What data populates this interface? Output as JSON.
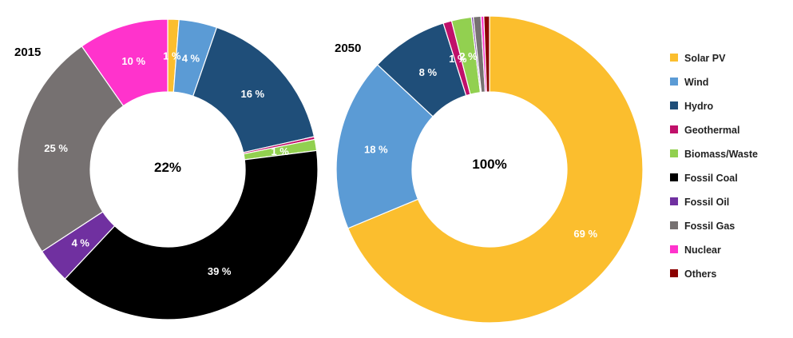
{
  "chart_data": [
    {
      "type": "pie",
      "title": "2015",
      "center_label": "22%",
      "labels": [
        "Solar PV",
        "Wind",
        "Hydro",
        "Geothermal",
        "Biomass/Waste",
        "Fossil Coal",
        "Fossil Oil",
        "Fossil Gas",
        "Nuclear",
        "Others"
      ],
      "values": [
        1.2,
        4.1,
        16.2,
        0.3,
        1.2,
        39.0,
        3.8,
        24.5,
        9.7,
        0
      ],
      "data_labels": [
        "1 %",
        "4 %",
        "16 %",
        "",
        "1 %",
        "39 %",
        "4 %",
        "25 %",
        "10 %",
        ""
      ]
    },
    {
      "type": "pie",
      "title": "2050",
      "center_label": "100%",
      "labels": [
        "Solar PV",
        "Wind",
        "Hydro",
        "Geothermal",
        "Biomass/Waste",
        "Fossil Coal",
        "Fossil Oil",
        "Fossil Gas",
        "Nuclear",
        "Others"
      ],
      "values": [
        69.0,
        18.3,
        8.2,
        0.9,
        2.1,
        0,
        0.2,
        0.8,
        0.3,
        0.6
      ],
      "data_labels": [
        "69 %",
        "18 %",
        "8 %",
        "1 %",
        "2 %",
        "",
        "",
        "",
        "",
        ""
      ]
    }
  ],
  "legend": {
    "placement": "right",
    "items": [
      {
        "label": "Solar PV",
        "color": "#FBBE2E"
      },
      {
        "label": "Wind",
        "color": "#5B9BD5"
      },
      {
        "label": "Hydro",
        "color": "#1F4E79"
      },
      {
        "label": "Geothermal",
        "color": "#C0106A"
      },
      {
        "label": "Biomass/Waste",
        "color": "#92D050"
      },
      {
        "label": "Fossil Coal",
        "color": "#000000"
      },
      {
        "label": "Fossil Oil",
        "color": "#7030A0"
      },
      {
        "label": "Fossil Gas",
        "color": "#767171"
      },
      {
        "label": "Nuclear",
        "color": "#FF33CC"
      },
      {
        "label": "Others",
        "color": "#8B0000"
      }
    ]
  }
}
